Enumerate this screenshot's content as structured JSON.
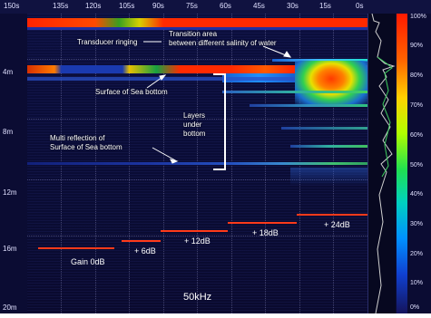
{
  "time_axis": [
    "150s",
    "135s",
    "120s",
    "105s",
    "90s",
    "75s",
    "60s",
    "45s",
    "30s",
    "15s",
    "0s"
  ],
  "depth_axis": [
    "4m",
    "8m",
    "12m",
    "16m",
    "20m"
  ],
  "scale_axis": [
    "100%",
    "90%",
    "80%",
    "70%",
    "60%",
    "50%",
    "40%",
    "30%",
    "20%",
    "10%",
    "0%"
  ],
  "annotations": {
    "transducer": "Transducer ringing",
    "transition_line1": "Transition area",
    "transition_line2": "between different salinity of water",
    "surface": "Surface of Sea bottom",
    "layers_line1": "Layers",
    "layers_line2": "under",
    "layers_line3": "bottom",
    "multi_line1": "Multi reflection of",
    "multi_line2": "Surface of Sea bottom"
  },
  "gains": [
    "Gain 0dB",
    "+ 6dB",
    "+ 12dB",
    "+ 18dB",
    "+ 24dB"
  ],
  "frequency": "50kHz",
  "colors": {
    "background": "#0b0c33",
    "surface_red": "#ff2a00",
    "surface_yellow": "#ffd000",
    "gain_bar": "#ff3a1a"
  }
}
